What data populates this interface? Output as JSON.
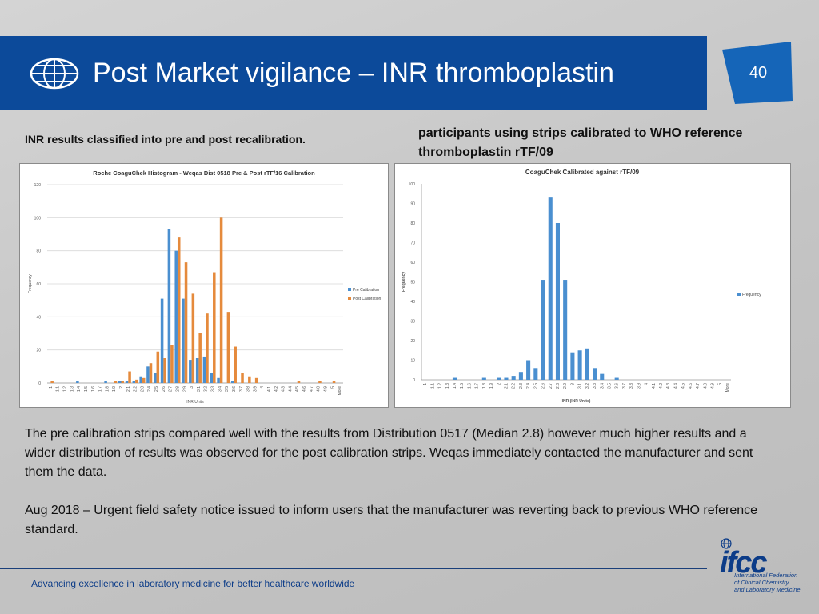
{
  "header": {
    "title": "Post Market vigilance – INR thromboplastin",
    "page_number": "40"
  },
  "captions": {
    "left": "INR results classified into pre and post recalibration.",
    "right": "participants using strips calibrated to WHO reference thromboplastin rTF/09"
  },
  "chart_data": [
    {
      "type": "bar",
      "title": "Roche CoaguChek Histogram - Weqas Dist 0518 Pre & Post rTF/16 Calibration",
      "xlabel": "INR Units",
      "ylabel": "Frequency",
      "ylim": [
        0,
        120
      ],
      "yticks": [
        "0",
        "20",
        "40",
        "60",
        "80",
        "100",
        "120"
      ],
      "grid": true,
      "legend": "right",
      "categories": [
        "1",
        "1.1",
        "1.2",
        "1.3",
        "1.4",
        "1.5",
        "1.6",
        "1.7",
        "1.8",
        "1.9",
        "2",
        "2.1",
        "2.2",
        "2.3",
        "2.4",
        "2.5",
        "2.6",
        "2.7",
        "2.8",
        "2.9",
        "3",
        "3.1",
        "3.2",
        "3.3",
        "3.4",
        "3.5",
        "3.6",
        "3.7",
        "3.8",
        "3.9",
        "4",
        "4.1",
        "4.2",
        "4.3",
        "4.4",
        "4.5",
        "4.6",
        "4.7",
        "4.8",
        "4.9",
        "5",
        "More"
      ],
      "series": [
        {
          "name": "Pre Calibration",
          "color": "#4a8fd0",
          "values": [
            0,
            0,
            0,
            0,
            1,
            0,
            0,
            0,
            1,
            0,
            1,
            1,
            1,
            4,
            10,
            6,
            51,
            93,
            80,
            51,
            14,
            15,
            16,
            6,
            3,
            0,
            1,
            0,
            0,
            0,
            0,
            0,
            0,
            0,
            0,
            0,
            0,
            0,
            0,
            0,
            0,
            0
          ]
        },
        {
          "name": "Post Calibration",
          "color": "#e58a3c",
          "values": [
            1,
            0,
            0,
            0,
            0,
            0,
            0,
            0,
            0,
            1,
            1,
            7,
            2,
            3,
            12,
            19,
            15,
            23,
            88,
            73,
            54,
            30,
            42,
            67,
            100,
            43,
            22,
            6,
            4,
            3,
            0,
            0,
            0,
            0,
            0,
            1,
            0,
            0,
            1,
            0,
            1,
            0
          ]
        }
      ]
    },
    {
      "type": "bar",
      "title": "CoaguChek Calibrated against rTF/09",
      "xlabel": "INR (INR Units)",
      "ylabel": "Frequency",
      "ylim": [
        0,
        100
      ],
      "yticks": [
        "0",
        "10",
        "20",
        "30",
        "40",
        "50",
        "60",
        "70",
        "80",
        "90",
        "100"
      ],
      "grid": false,
      "legend": "right",
      "categories": [
        "1",
        "1.1",
        "1.2",
        "1.3",
        "1.4",
        "1.5",
        "1.6",
        "1.7",
        "1.8",
        "1.9",
        "2",
        "2.1",
        "2.2",
        "2.3",
        "2.4",
        "2.5",
        "2.6",
        "2.7",
        "2.8",
        "2.9",
        "3",
        "3.1",
        "3.2",
        "3.3",
        "3.4",
        "3.5",
        "3.6",
        "3.7",
        "3.8",
        "3.9",
        "4",
        "4.1",
        "4.2",
        "4.3",
        "4.4",
        "4.5",
        "4.6",
        "4.7",
        "4.8",
        "4.9",
        "5",
        "More"
      ],
      "series": [
        {
          "name": "Frequency",
          "color": "#4a8fd0",
          "values": [
            0,
            0,
            0,
            0,
            1,
            0,
            0,
            0,
            1,
            0,
            1,
            1,
            2,
            4,
            10,
            6,
            51,
            93,
            80,
            51,
            14,
            15,
            16,
            6,
            3,
            0,
            1,
            0,
            0,
            0,
            0,
            0,
            0,
            0,
            0,
            0,
            0,
            0,
            0,
            0,
            0,
            0
          ]
        }
      ]
    }
  ],
  "body": {
    "paragraph1": "The pre calibration strips compared well with the results from Distribution 0517 (Median 2.8) however much higher results and a wider distribution of results was observed for the post calibration strips. Weqas immediately contacted the manufacturer and sent them the data.",
    "paragraph2": "Aug 2018 – Urgent field safety notice issued to inform users that the manufacturer was reverting back to previous WHO reference standard."
  },
  "footer": {
    "tagline": "Advancing excellence in laboratory medicine for better healthcare worldwide",
    "logo_word": "ifcc",
    "logo_line1": "International Federation",
    "logo_line2": "of Clinical Chemistry",
    "logo_line3": "and Laboratory Medicine"
  },
  "colors": {
    "header_blue": "#0c4a9a",
    "pre_calibration": "#4a8fd0",
    "post_calibration": "#e58a3c"
  },
  "icons": [
    "globe-icon",
    "page-badge-shape",
    "ifcc-logo"
  ]
}
